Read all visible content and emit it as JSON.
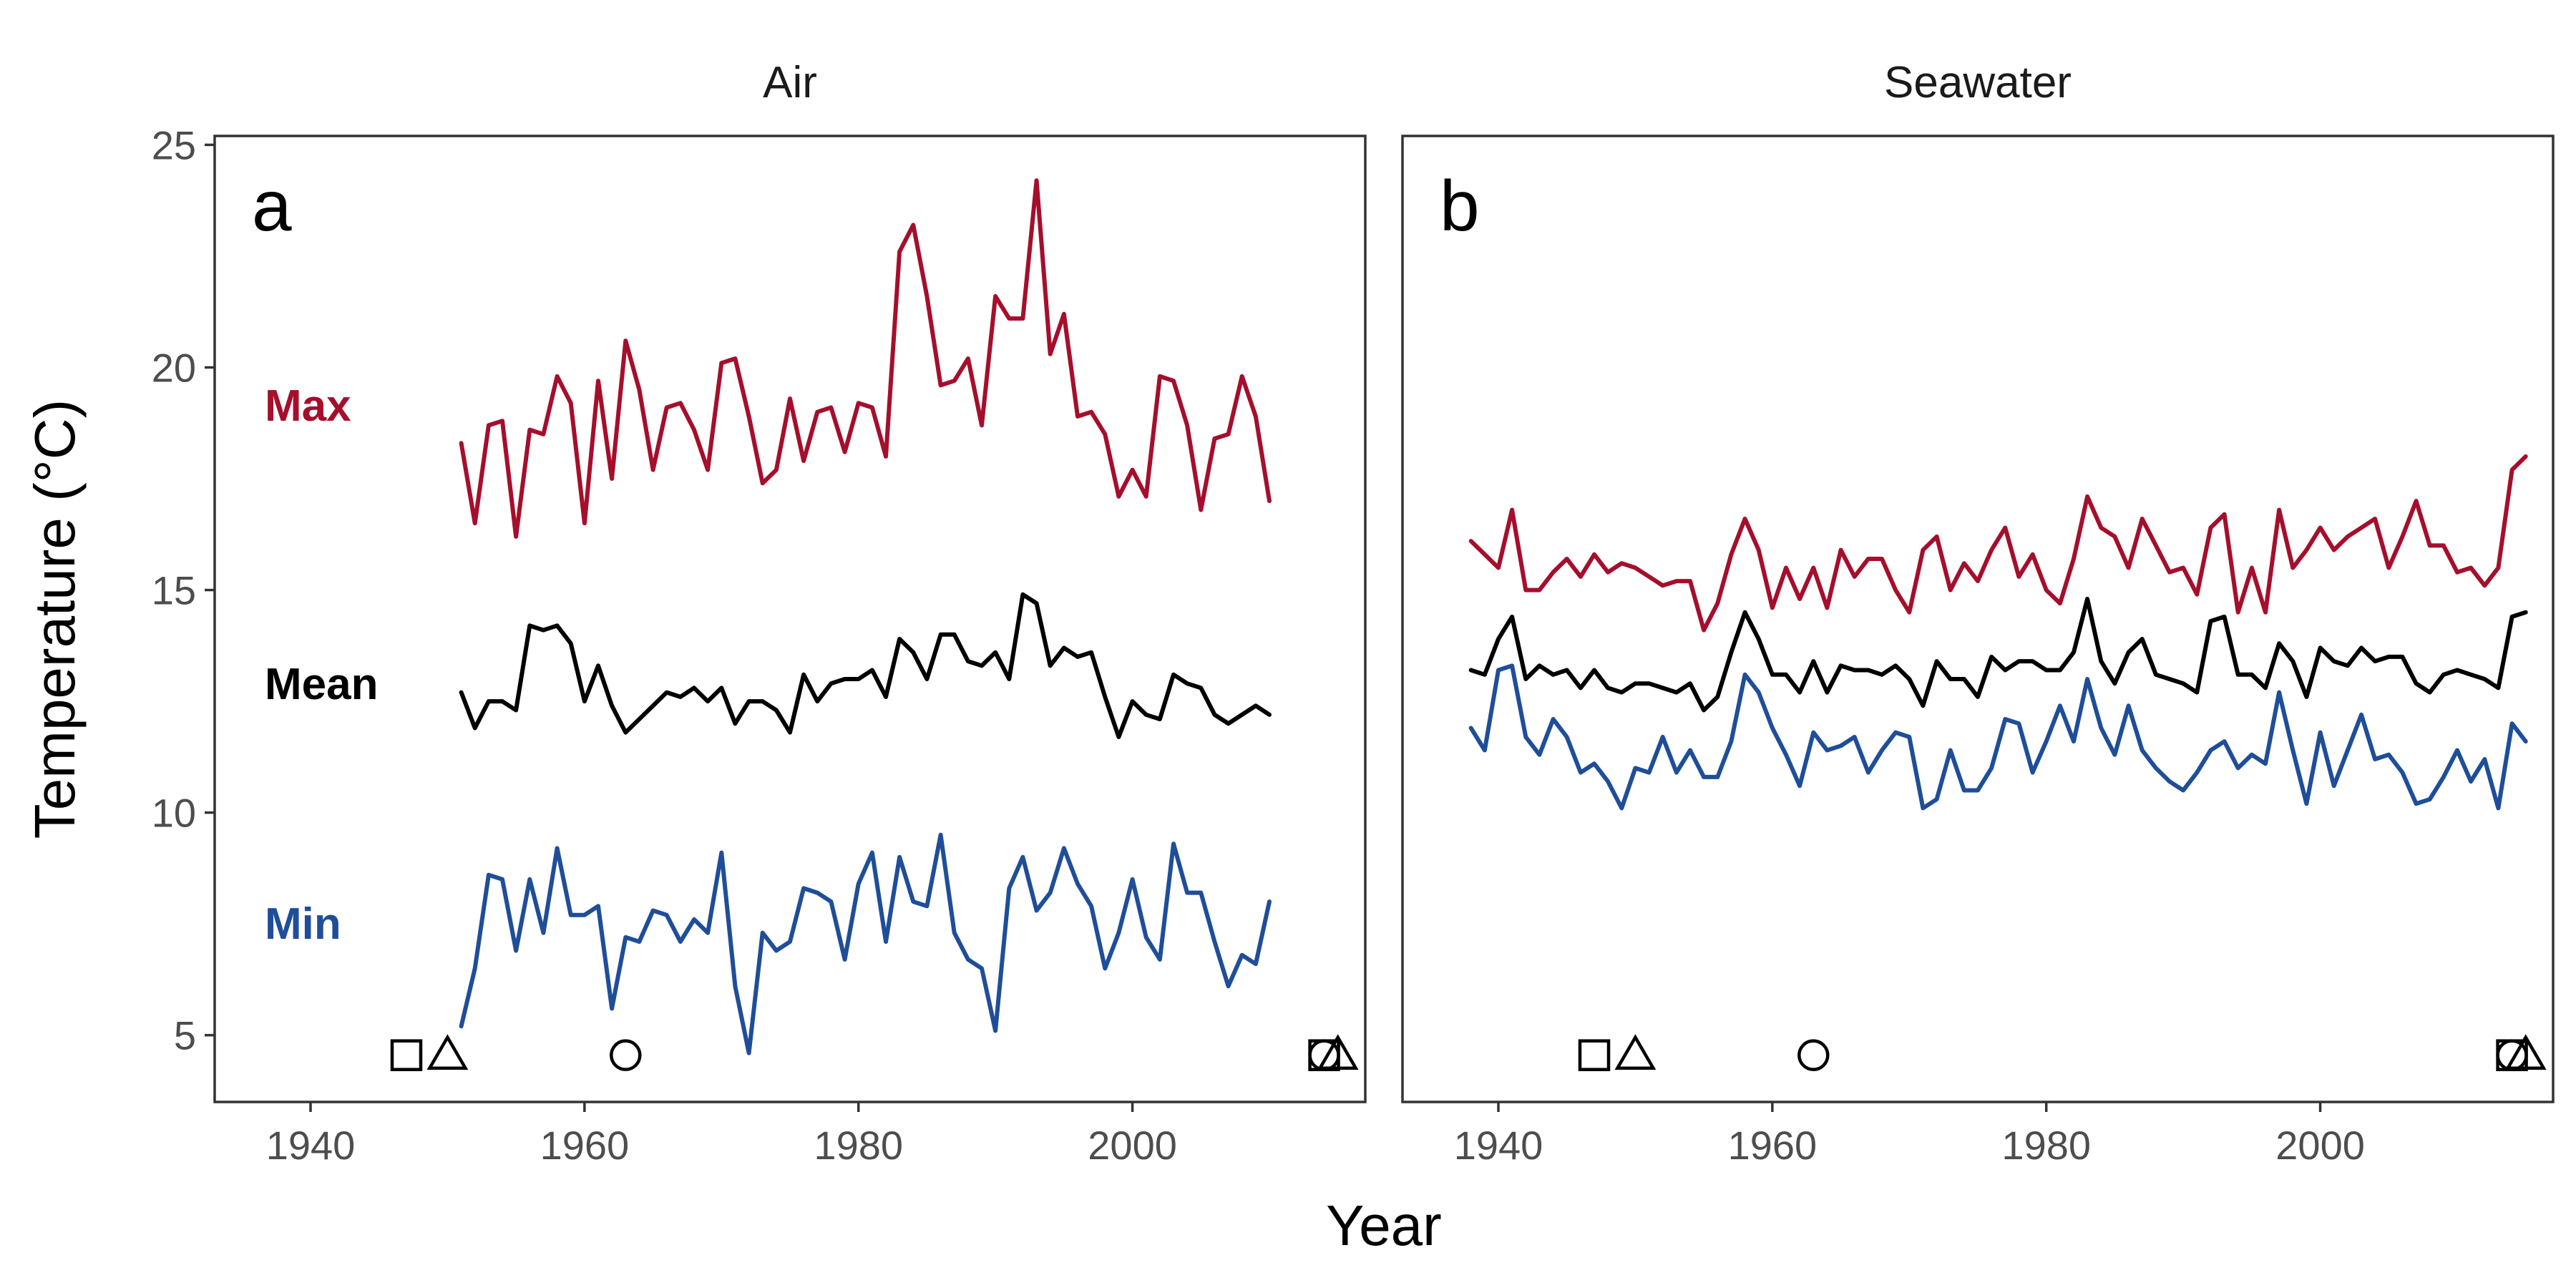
{
  "chart_data": {
    "type": "line",
    "xlabel": "Year",
    "ylabel": "Temperature (°C)",
    "xlim": [
      1933,
      2017
    ],
    "ylim": [
      3.5,
      25.2
    ],
    "x_ticks": [
      1940,
      1960,
      1980,
      2000
    ],
    "y_ticks": [
      5,
      10,
      15,
      20,
      25
    ],
    "grid": false,
    "legend": "inline labels at left of panel a",
    "colors": {
      "Max": "#A50F2C",
      "Mean": "#000000",
      "Min": "#1F4E99"
    },
    "panels": [
      {
        "strip": "Air",
        "letter": "a",
        "series": [
          {
            "name": "Max",
            "x_start": 1951,
            "values": [
              18.3,
              16.5,
              18.7,
              18.8,
              16.2,
              18.6,
              18.5,
              19.8,
              19.2,
              16.5,
              19.7,
              17.5,
              20.6,
              19.5,
              17.7,
              19.1,
              19.2,
              18.6,
              17.7,
              20.1,
              20.2,
              18.9,
              17.4,
              17.7,
              19.3,
              17.9,
              19.0,
              19.1,
              18.1,
              19.2,
              19.1,
              18.0,
              22.6,
              23.2,
              21.6,
              19.6,
              19.7,
              20.2,
              18.7,
              21.6,
              21.1,
              21.1,
              24.2,
              20.3,
              21.2,
              18.9,
              19.0,
              18.5,
              17.1,
              17.7,
              17.1,
              19.8,
              19.7,
              18.7,
              16.8,
              18.4,
              18.5,
              19.8,
              18.9,
              17.0
            ]
          },
          {
            "name": "Mean",
            "x_start": 1951,
            "values": [
              12.7,
              11.9,
              12.5,
              12.5,
              12.3,
              14.2,
              14.1,
              14.2,
              13.8,
              12.5,
              13.3,
              12.4,
              11.8,
              12.1,
              12.4,
              12.7,
              12.6,
              12.8,
              12.5,
              12.8,
              12.0,
              12.5,
              12.5,
              12.3,
              11.8,
              13.1,
              12.5,
              12.9,
              13.0,
              13.0,
              13.2,
              12.6,
              13.9,
              13.6,
              13.0,
              14.0,
              14.0,
              13.4,
              13.3,
              13.6,
              13.0,
              14.9,
              14.7,
              13.3,
              13.7,
              13.5,
              13.6,
              12.6,
              11.7,
              12.5,
              12.2,
              12.1,
              13.1,
              12.9,
              12.8,
              12.2,
              12.0,
              12.2,
              12.4,
              12.2
            ]
          },
          {
            "name": "Min",
            "x_start": 1951,
            "values": [
              5.2,
              6.5,
              8.6,
              8.5,
              6.9,
              8.5,
              7.3,
              9.2,
              7.7,
              7.7,
              7.9,
              5.6,
              7.2,
              7.1,
              7.8,
              7.7,
              7.1,
              7.6,
              7.3,
              9.1,
              6.1,
              4.6,
              7.3,
              6.9,
              7.1,
              8.3,
              8.2,
              8.0,
              6.7,
              8.4,
              9.1,
              7.1,
              9.0,
              8.0,
              7.9,
              9.5,
              7.3,
              6.7,
              6.5,
              5.1,
              8.3,
              9.0,
              7.8,
              8.2,
              9.2,
              8.4,
              7.9,
              6.5,
              7.3,
              8.5,
              7.2,
              6.7,
              9.3,
              8.2,
              8.2,
              7.1,
              6.1,
              6.8,
              6.6,
              8.0
            ]
          }
        ],
        "markers": [
          {
            "shape": "square",
            "x": 1947
          },
          {
            "shape": "triangle",
            "x": 1950
          },
          {
            "shape": "circle",
            "x": 1963
          },
          {
            "shape": "square",
            "x": 2014
          },
          {
            "shape": "circle",
            "x": 2014
          },
          {
            "shape": "triangle",
            "x": 2015
          }
        ]
      },
      {
        "strip": "Seawater",
        "letter": "b",
        "series": [
          {
            "name": "Max",
            "x_start": 1938,
            "values": [
              16.1,
              15.8,
              15.5,
              16.8,
              15.0,
              15.0,
              15.4,
              15.7,
              15.3,
              15.8,
              15.4,
              15.6,
              15.5,
              15.3,
              15.1,
              15.2,
              15.2,
              14.1,
              14.7,
              15.8,
              16.6,
              15.9,
              14.6,
              15.5,
              14.8,
              15.5,
              14.6,
              15.9,
              15.3,
              15.7,
              15.7,
              15.0,
              14.5,
              15.9,
              16.2,
              15.0,
              15.6,
              15.2,
              15.9,
              16.4,
              15.3,
              15.8,
              15.0,
              14.7,
              15.7,
              17.1,
              16.4,
              16.2,
              15.5,
              16.6,
              16.0,
              15.4,
              15.5,
              14.9,
              16.4,
              16.7,
              14.5,
              15.5,
              14.5,
              16.8,
              15.5,
              15.9,
              16.4,
              15.9,
              16.2,
              16.4,
              16.6,
              15.5,
              16.2,
              17.0,
              16.0,
              16.0,
              15.4,
              15.5,
              15.1,
              15.5,
              17.7,
              18.0
            ]
          },
          {
            "name": "Mean",
            "x_start": 1938,
            "values": [
              13.2,
              13.1,
              13.9,
              14.4,
              13.0,
              13.3,
              13.1,
              13.2,
              12.8,
              13.2,
              12.8,
              12.7,
              12.9,
              12.9,
              12.8,
              12.7,
              12.9,
              12.3,
              12.6,
              13.6,
              14.5,
              13.9,
              13.1,
              13.1,
              12.7,
              13.4,
              12.7,
              13.3,
              13.2,
              13.2,
              13.1,
              13.3,
              13.0,
              12.4,
              13.4,
              13.0,
              13.0,
              12.6,
              13.5,
              13.2,
              13.4,
              13.4,
              13.2,
              13.2,
              13.6,
              14.8,
              13.4,
              12.9,
              13.6,
              13.9,
              13.1,
              13.0,
              12.9,
              12.7,
              14.3,
              14.4,
              13.1,
              13.1,
              12.8,
              13.8,
              13.4,
              12.6,
              13.7,
              13.4,
              13.3,
              13.7,
              13.4,
              13.5,
              13.5,
              12.9,
              12.7,
              13.1,
              13.2,
              13.1,
              13.0,
              12.8,
              14.4,
              14.5
            ]
          },
          {
            "name": "Min",
            "x_start": 1938,
            "values": [
              11.9,
              11.4,
              13.2,
              13.3,
              11.7,
              11.3,
              12.1,
              11.7,
              10.9,
              11.1,
              10.7,
              10.1,
              11.0,
              10.9,
              11.7,
              10.9,
              11.4,
              10.8,
              10.8,
              11.6,
              13.1,
              12.7,
              11.9,
              11.3,
              10.6,
              11.8,
              11.4,
              11.5,
              11.7,
              10.9,
              11.4,
              11.8,
              11.7,
              10.1,
              10.3,
              11.4,
              10.5,
              10.5,
              11.0,
              12.1,
              12.0,
              10.9,
              11.6,
              12.4,
              11.6,
              13.0,
              11.9,
              11.3,
              12.4,
              11.4,
              11.0,
              10.7,
              10.5,
              10.9,
              11.4,
              11.6,
              11.0,
              11.3,
              11.1,
              12.7,
              11.4,
              10.2,
              11.8,
              10.6,
              11.4,
              12.2,
              11.2,
              11.3,
              10.9,
              10.2,
              10.3,
              10.8,
              11.4,
              10.7,
              11.2,
              10.1,
              12.0,
              11.6
            ]
          }
        ],
        "markers": [
          {
            "shape": "square",
            "x": 1947
          },
          {
            "shape": "triangle",
            "x": 1950
          },
          {
            "shape": "circle",
            "x": 1963
          },
          {
            "shape": "square",
            "x": 2014
          },
          {
            "shape": "circle",
            "x": 2014
          },
          {
            "shape": "triangle",
            "x": 2015
          }
        ]
      }
    ]
  }
}
